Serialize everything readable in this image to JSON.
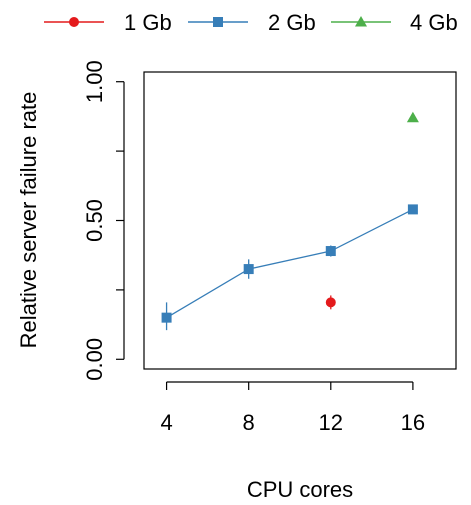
{
  "chart_data": {
    "type": "line",
    "xlabel": "CPU cores",
    "ylabel": "Relative server failure rate",
    "xlim": [
      2.9,
      18.1
    ],
    "ylim": [
      -0.035,
      1.035
    ],
    "x_ticks": [
      4,
      8,
      12,
      16
    ],
    "x_tick_labels": [
      "4",
      "8",
      "12",
      "16"
    ],
    "y_ticks": [
      0,
      0.25,
      0.5,
      0.75,
      1
    ],
    "y_tick_labels": [
      "0.00",
      "",
      "0.50",
      "",
      "1.00"
    ],
    "grid": false,
    "legend_position": "top",
    "series": [
      {
        "name": "1 Gb",
        "color": "#e41a1c",
        "marker": "circle",
        "connected": false,
        "points": [
          {
            "x": 12,
            "y": 0.205,
            "lo": 0.18,
            "hi": 0.23
          }
        ]
      },
      {
        "name": "2 Gb",
        "color": "#377eb8",
        "marker": "square",
        "connected": true,
        "points": [
          {
            "x": 4,
            "y": 0.15,
            "lo": 0.105,
            "hi": 0.205
          },
          {
            "x": 8,
            "y": 0.325,
            "lo": 0.29,
            "hi": 0.36
          },
          {
            "x": 12,
            "y": 0.39,
            "lo": 0.37,
            "hi": 0.41
          },
          {
            "x": 16,
            "y": 0.54,
            "lo": 0.54,
            "hi": 0.54
          }
        ]
      },
      {
        "name": "4 Gb",
        "color": "#4daf4a",
        "marker": "triangle",
        "connected": false,
        "points": [
          {
            "x": 16,
            "y": 0.87,
            "lo": 0.87,
            "hi": 0.87
          }
        ]
      }
    ]
  }
}
